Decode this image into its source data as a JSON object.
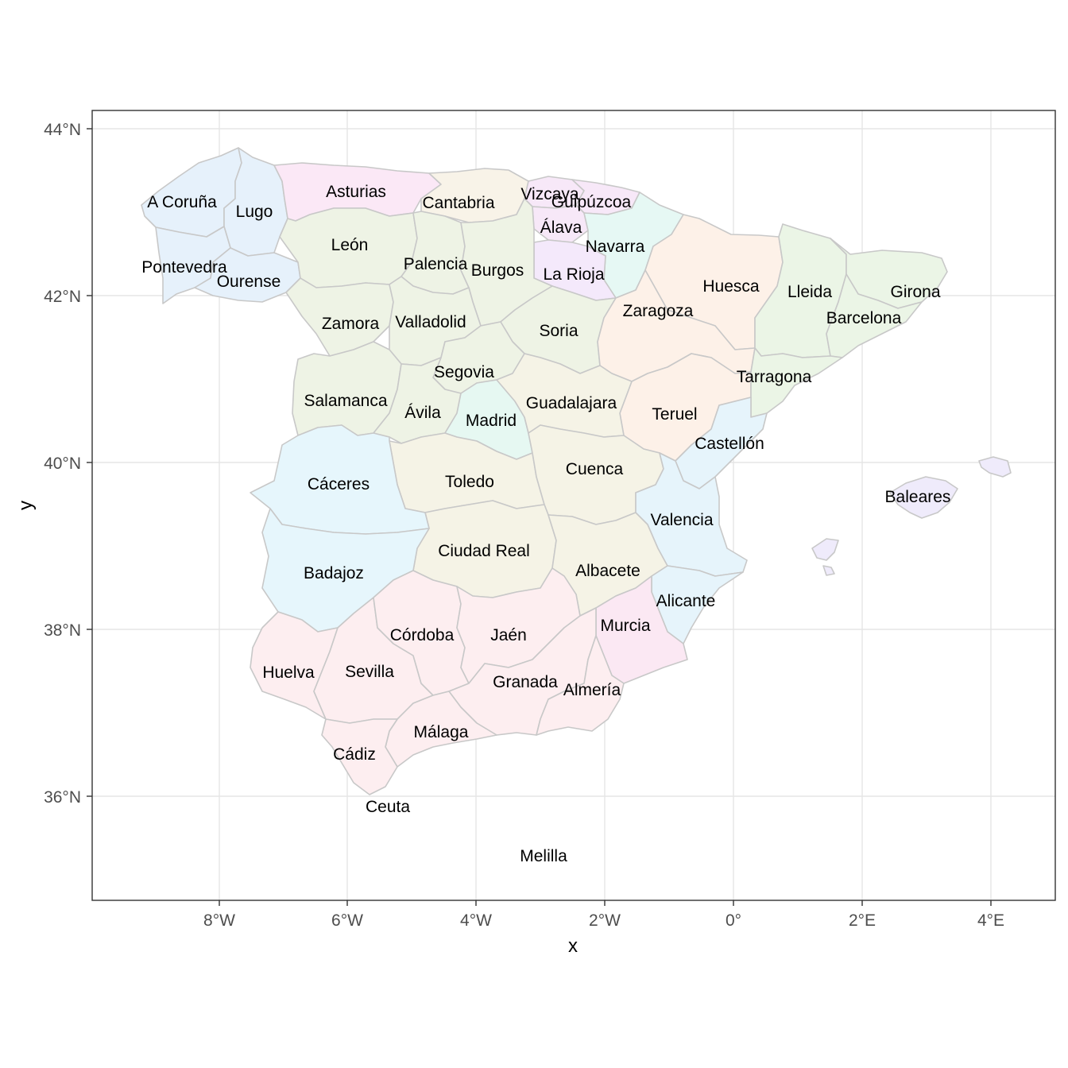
{
  "map": {
    "xlabel": "x",
    "ylabel": "y",
    "x_ticks": [
      "8°W",
      "6°W",
      "4°W",
      "2°W",
      "0°",
      "2°E",
      "4°E"
    ],
    "y_ticks": [
      "44°N",
      "42°N",
      "40°N",
      "38°N",
      "36°N"
    ],
    "colors": {
      "galicia": "#e6f1fb",
      "asturias": "#fbe8f6",
      "cantabria": "#f8f3e8",
      "pais_vasco": "#f7e8f8",
      "navarra": "#e6f8f4",
      "la_rioja": "#f4e9fb",
      "castilla_leon": "#eef3e5",
      "aragon": "#fdf1e8",
      "cataluna": "#ebf5e6",
      "madrid": "#e6f8f2",
      "castilla_la_mancha": "#f5f3e6",
      "extremadura": "#e6f6fc",
      "valencia": "#e6f4fb",
      "murcia": "#fbe8f3",
      "andalucia": "#fdeef0",
      "baleares": "#efebfb",
      "border": "#c8c8c8"
    },
    "provinces": [
      {
        "name": "A Coruña",
        "region": "galicia"
      },
      {
        "name": "Lugo",
        "region": "galicia"
      },
      {
        "name": "Pontevedra",
        "region": "galicia"
      },
      {
        "name": "Ourense",
        "region": "galicia"
      },
      {
        "name": "Asturias",
        "region": "asturias"
      },
      {
        "name": "Cantabria",
        "region": "cantabria"
      },
      {
        "name": "Vizcaya",
        "region": "pais_vasco"
      },
      {
        "name": "Guipúzcoa",
        "region": "pais_vasco"
      },
      {
        "name": "Álava",
        "region": "pais_vasco"
      },
      {
        "name": "Navarra",
        "region": "navarra"
      },
      {
        "name": "La Rioja",
        "region": "la_rioja"
      },
      {
        "name": "León",
        "region": "castilla_leon"
      },
      {
        "name": "Palencia",
        "region": "castilla_leon"
      },
      {
        "name": "Burgos",
        "region": "castilla_leon"
      },
      {
        "name": "Zamora",
        "region": "castilla_leon"
      },
      {
        "name": "Valladolid",
        "region": "castilla_leon"
      },
      {
        "name": "Soria",
        "region": "castilla_leon"
      },
      {
        "name": "Segovia",
        "region": "castilla_leon"
      },
      {
        "name": "Salamanca",
        "region": "castilla_leon"
      },
      {
        "name": "Ávila",
        "region": "castilla_leon"
      },
      {
        "name": "Huesca",
        "region": "aragon"
      },
      {
        "name": "Zaragoza",
        "region": "aragon"
      },
      {
        "name": "Teruel",
        "region": "aragon"
      },
      {
        "name": "Lleida",
        "region": "cataluna"
      },
      {
        "name": "Girona",
        "region": "cataluna"
      },
      {
        "name": "Barcelona",
        "region": "cataluna"
      },
      {
        "name": "Tarragona",
        "region": "cataluna"
      },
      {
        "name": "Madrid",
        "region": "madrid"
      },
      {
        "name": "Guadalajara",
        "region": "castilla_la_mancha"
      },
      {
        "name": "Toledo",
        "region": "castilla_la_mancha"
      },
      {
        "name": "Cuenca",
        "region": "castilla_la_mancha"
      },
      {
        "name": "Ciudad Real",
        "region": "castilla_la_mancha"
      },
      {
        "name": "Albacete",
        "region": "castilla_la_mancha"
      },
      {
        "name": "Cáceres",
        "region": "extremadura"
      },
      {
        "name": "Badajoz",
        "region": "extremadura"
      },
      {
        "name": "Castellón",
        "region": "valencia"
      },
      {
        "name": "Valencia",
        "region": "valencia"
      },
      {
        "name": "Alicante",
        "region": "valencia"
      },
      {
        "name": "Murcia",
        "region": "murcia"
      },
      {
        "name": "Huelva",
        "region": "andalucia"
      },
      {
        "name": "Sevilla",
        "region": "andalucia"
      },
      {
        "name": "Córdoba",
        "region": "andalucia"
      },
      {
        "name": "Jaén",
        "region": "andalucia"
      },
      {
        "name": "Granada",
        "region": "andalucia"
      },
      {
        "name": "Almería",
        "region": "andalucia"
      },
      {
        "name": "Málaga",
        "region": "andalucia"
      },
      {
        "name": "Cádiz",
        "region": "andalucia"
      },
      {
        "name": "Baleares",
        "region": "baleares"
      },
      {
        "name": "Ceuta",
        "region": "andalucia"
      },
      {
        "name": "Melilla",
        "region": "andalucia"
      }
    ]
  }
}
